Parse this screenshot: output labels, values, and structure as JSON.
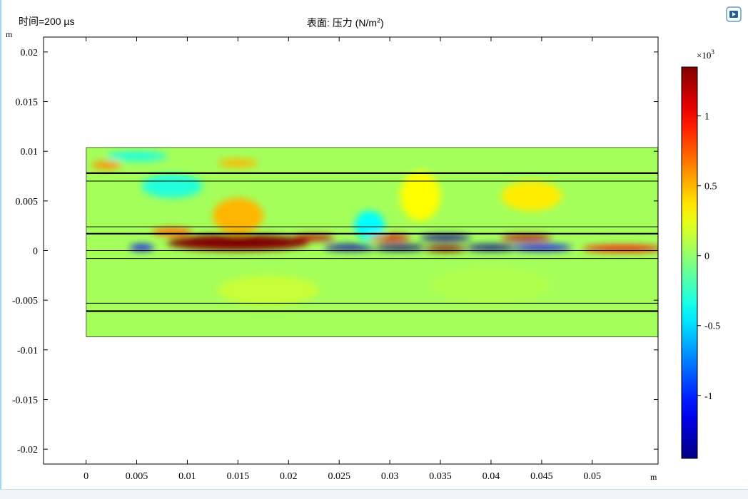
{
  "header": {
    "time_label": "时间=200 µs",
    "title_prefix": "表面: 压力 (N/m",
    "title_sup": "2",
    "title_suffix": ")"
  },
  "chart_data": {
    "type": "heatmap",
    "title": "表面: 压力 (N/m²)",
    "time": "时间=200 µs",
    "x_unit": "m",
    "y_unit": "m",
    "xlim": [
      -0.0042,
      0.0565
    ],
    "ylim": [
      -0.0215,
      0.0215
    ],
    "x_ticks": [
      0,
      0.005,
      0.01,
      0.015,
      0.02,
      0.025,
      0.03,
      0.035,
      0.04,
      0.045,
      0.05
    ],
    "x_tick_labels": [
      "0",
      "0.005",
      "0.01",
      "0.015",
      "0.02",
      "0.025",
      "0.03",
      "0.035",
      "0.04",
      "0.045",
      "0.05"
    ],
    "y_ticks": [
      0.02,
      0.015,
      0.01,
      0.005,
      0,
      -0.005,
      -0.01,
      -0.015,
      -0.02
    ],
    "y_tick_labels": [
      "0.02",
      "0.015",
      "0.01",
      "0.005",
      "0",
      "-0.005",
      "-0.01",
      "-0.015",
      "-0.02"
    ],
    "domain": {
      "x": [
        0,
        0.0566
      ],
      "y": [
        -0.0087,
        0.0104
      ]
    },
    "layer_boundaries_y": [
      0.0078,
      0.007,
      0.0024,
      0.0017,
      0,
      -0.0008,
      -0.0053,
      -0.0061
    ],
    "thick_boundaries_y": [
      0.0078,
      0.0017,
      -0.0061
    ],
    "colorbar": {
      "multiplier_base": "×10",
      "multiplier_exp": "3",
      "min": -1.45,
      "max": 1.35,
      "ticks": [
        1,
        0.5,
        0,
        -0.5,
        -1
      ],
      "tick_labels": [
        "1",
        "0.5",
        "0",
        "-0.5",
        "-1"
      ]
    },
    "field_blobs": [
      {
        "x": 0.015,
        "y": 0.0035,
        "rx": 0.0025,
        "ry": 0.0018,
        "v": 0.5
      },
      {
        "x": 0.0085,
        "y": 0.0019,
        "rx": 0.002,
        "ry": 0.0004,
        "v": 0.7
      },
      {
        "x": 0.033,
        "y": 0.0055,
        "rx": 0.002,
        "ry": 0.0025,
        "v": 0.3
      },
      {
        "x": 0.0085,
        "y": 0.0065,
        "rx": 0.003,
        "ry": 0.0012,
        "v": -0.3
      },
      {
        "x": 0.028,
        "y": 0.0025,
        "rx": 0.0015,
        "ry": 0.0015,
        "v": -0.4
      },
      {
        "x": 0.044,
        "y": 0.0055,
        "rx": 0.003,
        "ry": 0.0015,
        "v": 0.35
      },
      {
        "x": 0.005,
        "y": 0.0095,
        "rx": 0.003,
        "ry": 0.0005,
        "v": -0.3
      },
      {
        "x": 0.015,
        "y": 0.0088,
        "rx": 0.002,
        "ry": 0.0004,
        "v": 0.5
      },
      {
        "x": 0.002,
        "y": 0.0086,
        "rx": 0.0015,
        "ry": 0.0004,
        "v": 0.6
      },
      {
        "x": 0.015,
        "y": 0.0008,
        "rx": 0.007,
        "ry": 0.0008,
        "v": 1.35
      },
      {
        "x": 0.0225,
        "y": 0.0013,
        "rx": 0.002,
        "ry": 0.0003,
        "v": 1.2
      },
      {
        "x": 0.03,
        "y": 0.0013,
        "rx": 0.002,
        "ry": 0.0003,
        "v": 1.1
      },
      {
        "x": 0.0355,
        "y": 0.0013,
        "rx": 0.0025,
        "ry": 0.0003,
        "v": -1.4
      },
      {
        "x": 0.0435,
        "y": 0.0013,
        "rx": 0.0025,
        "ry": 0.0003,
        "v": 1.2
      },
      {
        "x": 0.0055,
        "y": 0.0003,
        "rx": 0.0012,
        "ry": 0.0003,
        "v": -1.1
      },
      {
        "x": 0.026,
        "y": 0.0003,
        "rx": 0.0025,
        "ry": 0.0003,
        "v": -1.3
      },
      {
        "x": 0.031,
        "y": 0.0003,
        "rx": 0.0025,
        "ry": 0.0003,
        "v": -1.45
      },
      {
        "x": 0.0355,
        "y": 0.0002,
        "rx": 0.002,
        "ry": 0.0003,
        "v": 1.35
      },
      {
        "x": 0.04,
        "y": 0.0003,
        "rx": 0.0025,
        "ry": 0.0003,
        "v": -1.4
      },
      {
        "x": 0.045,
        "y": 0.0003,
        "rx": 0.003,
        "ry": 0.0003,
        "v": -1.1
      },
      {
        "x": 0.053,
        "y": 0.0002,
        "rx": 0.004,
        "ry": 0.0003,
        "v": 1.0
      },
      {
        "x": 0.018,
        "y": -0.004,
        "rx": 0.005,
        "ry": 0.0015,
        "v": 0.15
      },
      {
        "x": 0.04,
        "y": -0.0035,
        "rx": 0.006,
        "ry": 0.002,
        "v": 0.08
      }
    ]
  }
}
